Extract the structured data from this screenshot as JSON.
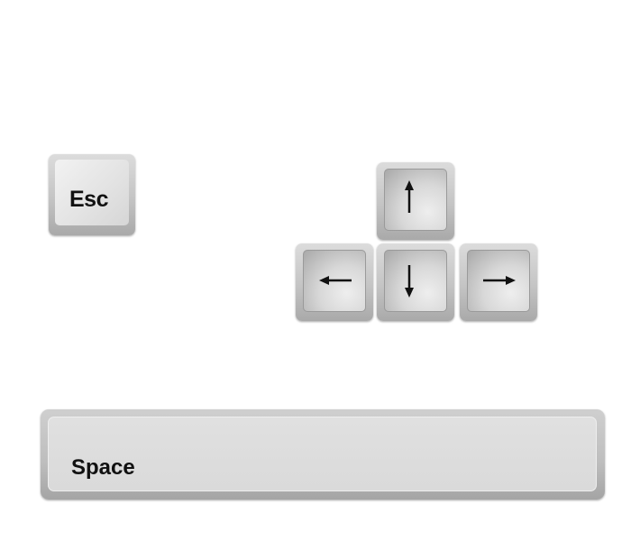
{
  "keys": {
    "esc": {
      "label": "Esc"
    },
    "space": {
      "label": "Space"
    },
    "arrows": {
      "up": {
        "icon": "arrow-up-icon"
      },
      "left": {
        "icon": "arrow-left-icon"
      },
      "down": {
        "icon": "arrow-down-icon"
      },
      "right": {
        "icon": "arrow-right-icon"
      }
    }
  },
  "colors": {
    "background": "#ffffff",
    "key_face": "#dcdcdc",
    "key_edge": "#a9a9a9",
    "glyph": "#111111"
  }
}
